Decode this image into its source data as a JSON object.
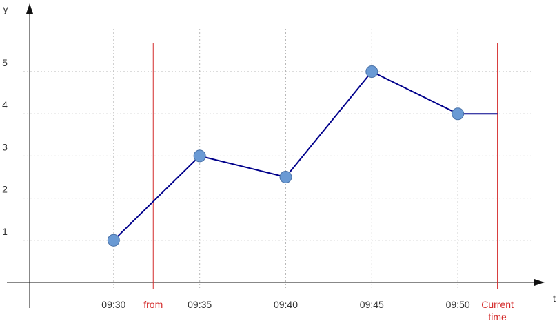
{
  "chart_data": {
    "type": "line",
    "title": "",
    "xlabel": "t",
    "ylabel": "y",
    "x_ticks": [
      "09:30",
      "09:35",
      "09:40",
      "09:45",
      "09:50"
    ],
    "y_ticks": [
      1,
      2,
      3,
      4,
      5
    ],
    "xlim": [
      "09:25",
      "09:55"
    ],
    "ylim": [
      0,
      6
    ],
    "grid": true,
    "series": [
      {
        "points": [
          {
            "x": "09:30",
            "y": 1
          },
          {
            "x": "09:35",
            "y": 3
          },
          {
            "x": "09:40",
            "y": 2.5
          },
          {
            "x": "09:45",
            "y": 5
          },
          {
            "x": "09:50",
            "y": 4
          },
          {
            "x": "09:52.3",
            "y": 4
          }
        ],
        "color": "#00008b",
        "marker_color": "#6a9ad4"
      }
    ],
    "markers": [
      {
        "label": "from",
        "x": "09:32.3",
        "color": "#d42c2c"
      },
      {
        "label": "Current\ntime",
        "x": "09:52.3",
        "color": "#d42c2c"
      }
    ]
  }
}
